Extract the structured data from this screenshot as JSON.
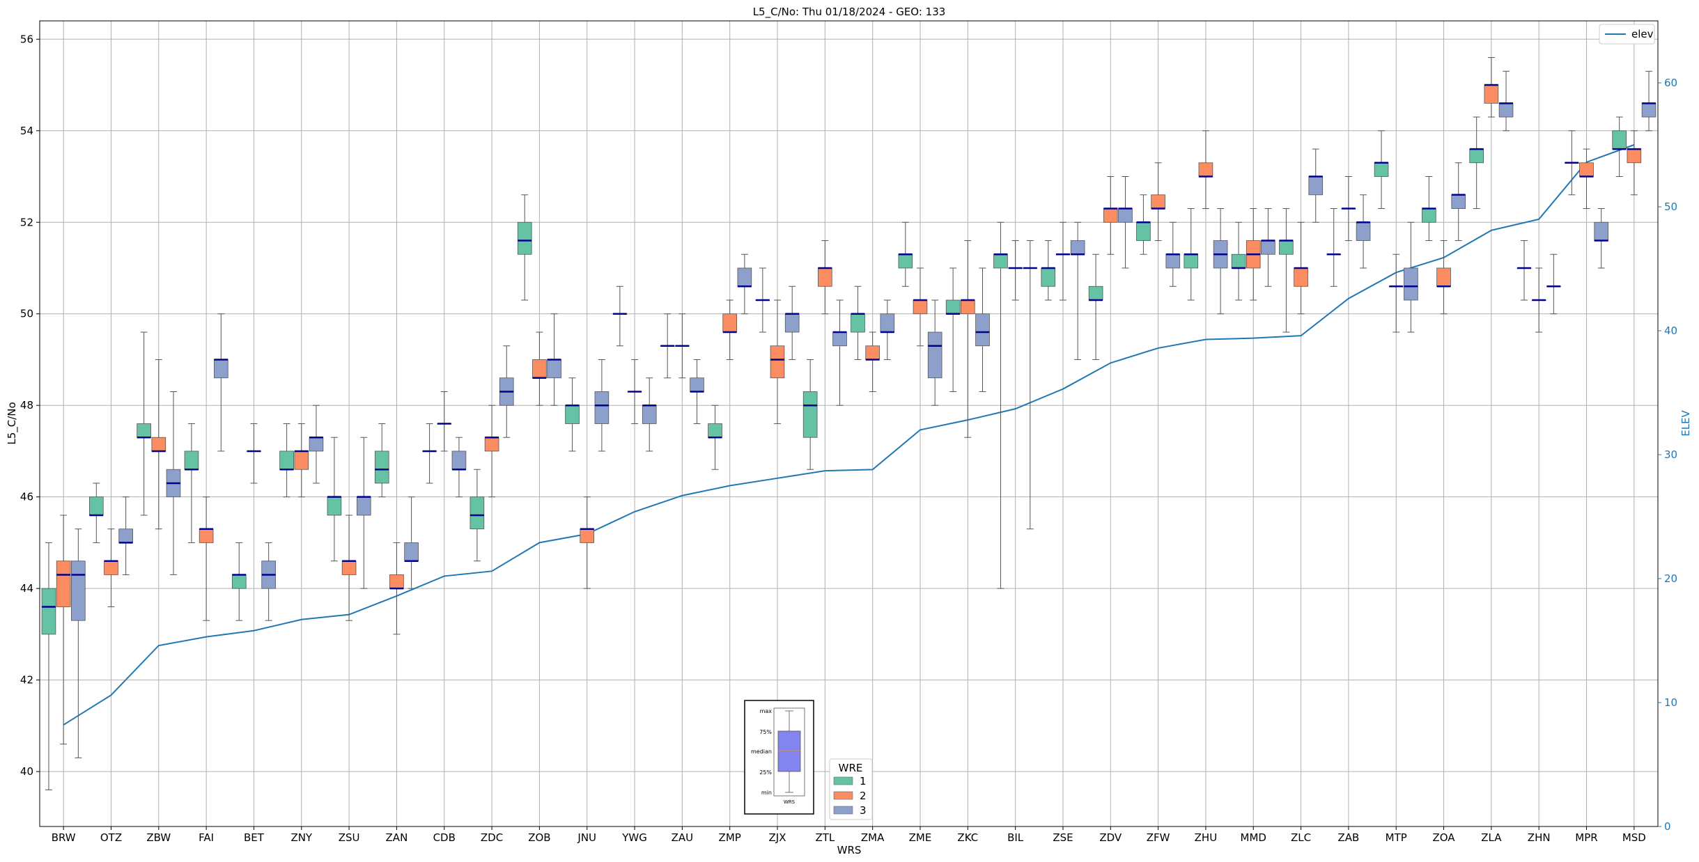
{
  "chart_data": {
    "type": "box",
    "title": "L5_C/No: Thu 01/18/2024 - GEO: 133",
    "xlabel": "WRS",
    "ylabel": "L5_C/No",
    "y2label": "ELEV",
    "ylim": [
      38.8,
      56.4
    ],
    "y2lim": [
      0,
      65
    ],
    "yticks": [
      40,
      42,
      44,
      46,
      48,
      50,
      52,
      54,
      56
    ],
    "y2ticks": [
      0,
      10,
      20,
      30,
      40,
      50,
      60
    ],
    "grid": true,
    "categories": [
      "BRW",
      "OTZ",
      "ZBW",
      "FAI",
      "BET",
      "ZNY",
      "ZSU",
      "ZAN",
      "CDB",
      "ZDC",
      "ZOB",
      "JNU",
      "YWG",
      "ZAU",
      "ZMP",
      "ZJX",
      "ZTL",
      "ZMA",
      "ZME",
      "ZKC",
      "BIL",
      "ZSE",
      "ZDV",
      "ZFW",
      "ZHU",
      "MMD",
      "ZLC",
      "ZAB",
      "MTP",
      "ZOA",
      "ZLA",
      "ZHN",
      "MPR",
      "MSD"
    ],
    "colors": {
      "wre1": "#66c2a5",
      "wre2": "#fc8d62",
      "wre3": "#8da0cb",
      "median": "#00008b",
      "elev": "#1f77b4",
      "whisker": "#555555",
      "grid": "#b0b0b0"
    },
    "box_legend": {
      "title": "WRE",
      "entries": [
        "1",
        "2",
        "3"
      ]
    },
    "line_legend": {
      "entries": [
        "elev"
      ]
    },
    "inset_key": {
      "labels": [
        "max",
        "75%",
        "median",
        "25%",
        "min"
      ],
      "xlabel": "WRS"
    },
    "elev": [
      8.2,
      10.6,
      14.6,
      15.3,
      15.8,
      16.7,
      17.1,
      18.6,
      20.2,
      20.6,
      22.9,
      23.6,
      25.4,
      26.7,
      27.5,
      28.1,
      28.7,
      28.8,
      32.0,
      32.8,
      33.7,
      35.3,
      37.4,
      38.6,
      39.3,
      39.4,
      39.6,
      42.6,
      44.7,
      45.9,
      48.1,
      49.0,
      53.6,
      55.0
    ],
    "boxes": [
      {
        "cat": "BRW",
        "wre": 1,
        "min": 39.6,
        "q1": 43.0,
        "med": 43.6,
        "q3": 44.0,
        "max": 45.0
      },
      {
        "cat": "BRW",
        "wre": 2,
        "min": 40.6,
        "q1": 43.6,
        "med": 44.3,
        "q3": 44.6,
        "max": 45.6
      },
      {
        "cat": "BRW",
        "wre": 3,
        "min": 40.3,
        "q1": 43.3,
        "med": 44.3,
        "q3": 44.6,
        "max": 45.3
      },
      {
        "cat": "OTZ",
        "wre": 1,
        "min": 45.0,
        "q1": 45.6,
        "med": 45.6,
        "q3": 46.0,
        "max": 46.3
      },
      {
        "cat": "OTZ",
        "wre": 2,
        "min": 43.6,
        "q1": 44.3,
        "med": 44.6,
        "q3": 44.6,
        "max": 45.3
      },
      {
        "cat": "OTZ",
        "wre": 3,
        "min": 44.3,
        "q1": 45.0,
        "med": 45.0,
        "q3": 45.3,
        "max": 46.0
      },
      {
        "cat": "ZBW",
        "wre": 1,
        "min": 45.6,
        "q1": 47.3,
        "med": 47.3,
        "q3": 47.6,
        "max": 49.6
      },
      {
        "cat": "ZBW",
        "wre": 2,
        "min": 45.3,
        "q1": 47.0,
        "med": 47.0,
        "q3": 47.3,
        "max": 49.0
      },
      {
        "cat": "ZBW",
        "wre": 3,
        "min": 44.3,
        "q1": 46.0,
        "med": 46.3,
        "q3": 46.6,
        "max": 48.3
      },
      {
        "cat": "FAI",
        "wre": 1,
        "min": 45.0,
        "q1": 46.6,
        "med": 46.6,
        "q3": 47.0,
        "max": 47.6
      },
      {
        "cat": "FAI",
        "wre": 2,
        "min": 43.3,
        "q1": 45.0,
        "med": 45.3,
        "q3": 45.3,
        "max": 46.0
      },
      {
        "cat": "FAI",
        "wre": 3,
        "min": 47.0,
        "q1": 48.6,
        "med": 49.0,
        "q3": 49.0,
        "max": 50.0
      },
      {
        "cat": "BET",
        "wre": 1,
        "min": 43.3,
        "q1": 44.0,
        "med": 44.3,
        "q3": 44.3,
        "max": 45.0
      },
      {
        "cat": "BET",
        "wre": 2,
        "min": 46.3,
        "q1": 47.0,
        "med": 47.0,
        "q3": 47.0,
        "max": 47.6
      },
      {
        "cat": "BET",
        "wre": 3,
        "min": 43.3,
        "q1": 44.0,
        "med": 44.3,
        "q3": 44.6,
        "max": 45.0
      },
      {
        "cat": "ZNY",
        "wre": 1,
        "min": 46.0,
        "q1": 46.6,
        "med": 46.6,
        "q3": 47.0,
        "max": 47.6
      },
      {
        "cat": "ZNY",
        "wre": 2,
        "min": 46.0,
        "q1": 46.6,
        "med": 47.0,
        "q3": 47.0,
        "max": 47.6
      },
      {
        "cat": "ZNY",
        "wre": 3,
        "min": 46.3,
        "q1": 47.0,
        "med": 47.3,
        "q3": 47.3,
        "max": 48.0
      },
      {
        "cat": "ZSU",
        "wre": 1,
        "min": 44.6,
        "q1": 45.6,
        "med": 46.0,
        "q3": 46.0,
        "max": 47.3
      },
      {
        "cat": "ZSU",
        "wre": 2,
        "min": 43.3,
        "q1": 44.3,
        "med": 44.6,
        "q3": 44.6,
        "max": 45.6
      },
      {
        "cat": "ZSU",
        "wre": 3,
        "min": 44.0,
        "q1": 45.6,
        "med": 46.0,
        "q3": 46.0,
        "max": 47.3
      },
      {
        "cat": "ZAN",
        "wre": 1,
        "min": 46.0,
        "q1": 46.3,
        "med": 46.6,
        "q3": 47.0,
        "max": 47.6
      },
      {
        "cat": "ZAN",
        "wre": 2,
        "min": 43.0,
        "q1": 44.0,
        "med": 44.0,
        "q3": 44.3,
        "max": 45.0
      },
      {
        "cat": "ZAN",
        "wre": 3,
        "min": 44.0,
        "q1": 44.6,
        "med": 44.6,
        "q3": 45.0,
        "max": 46.0
      },
      {
        "cat": "CDB",
        "wre": 1,
        "min": 46.3,
        "q1": 47.0,
        "med": 47.0,
        "q3": 47.0,
        "max": 47.6
      },
      {
        "cat": "CDB",
        "wre": 2,
        "min": 47.0,
        "q1": 47.6,
        "med": 47.6,
        "q3": 47.6,
        "max": 48.3
      },
      {
        "cat": "CDB",
        "wre": 3,
        "min": 46.0,
        "q1": 46.6,
        "med": 46.6,
        "q3": 47.0,
        "max": 47.3
      },
      {
        "cat": "ZDC",
        "wre": 1,
        "min": 44.6,
        "q1": 45.3,
        "med": 45.6,
        "q3": 46.0,
        "max": 46.6
      },
      {
        "cat": "ZDC",
        "wre": 2,
        "min": 46.0,
        "q1": 47.0,
        "med": 47.3,
        "q3": 47.3,
        "max": 48.0
      },
      {
        "cat": "ZDC",
        "wre": 3,
        "min": 47.3,
        "q1": 48.0,
        "med": 48.3,
        "q3": 48.6,
        "max": 49.3
      },
      {
        "cat": "ZOB",
        "wre": 1,
        "min": 50.3,
        "q1": 51.3,
        "med": 51.6,
        "q3": 52.0,
        "max": 52.6
      },
      {
        "cat": "ZOB",
        "wre": 2,
        "min": 48.0,
        "q1": 48.6,
        "med": 48.6,
        "q3": 49.0,
        "max": 49.6
      },
      {
        "cat": "ZOB",
        "wre": 3,
        "min": 48.0,
        "q1": 48.6,
        "med": 49.0,
        "q3": 49.0,
        "max": 50.0
      },
      {
        "cat": "JNU",
        "wre": 1,
        "min": 47.0,
        "q1": 47.6,
        "med": 48.0,
        "q3": 48.0,
        "max": 48.6
      },
      {
        "cat": "JNU",
        "wre": 2,
        "min": 44.0,
        "q1": 45.0,
        "med": 45.3,
        "q3": 45.3,
        "max": 46.0
      },
      {
        "cat": "JNU",
        "wre": 3,
        "min": 47.0,
        "q1": 47.6,
        "med": 48.0,
        "q3": 48.3,
        "max": 49.0
      },
      {
        "cat": "YWG",
        "wre": 1,
        "min": 49.3,
        "q1": 50.0,
        "med": 50.0,
        "q3": 50.0,
        "max": 50.6
      },
      {
        "cat": "YWG",
        "wre": 2,
        "min": 47.6,
        "q1": 48.3,
        "med": 48.3,
        "q3": 48.3,
        "max": 49.0
      },
      {
        "cat": "YWG",
        "wre": 3,
        "min": 47.0,
        "q1": 47.6,
        "med": 48.0,
        "q3": 48.0,
        "max": 48.6
      },
      {
        "cat": "ZAU",
        "wre": 1,
        "min": 48.6,
        "q1": 49.3,
        "med": 49.3,
        "q3": 49.3,
        "max": 50.0
      },
      {
        "cat": "ZAU",
        "wre": 2,
        "min": 48.6,
        "q1": 49.3,
        "med": 49.3,
        "q3": 49.3,
        "max": 50.0
      },
      {
        "cat": "ZAU",
        "wre": 3,
        "min": 47.6,
        "q1": 48.3,
        "med": 48.3,
        "q3": 48.6,
        "max": 49.0
      },
      {
        "cat": "ZMP",
        "wre": 1,
        "min": 46.6,
        "q1": 47.3,
        "med": 47.3,
        "q3": 47.6,
        "max": 48.0
      },
      {
        "cat": "ZMP",
        "wre": 2,
        "min": 49.0,
        "q1": 49.6,
        "med": 49.6,
        "q3": 50.0,
        "max": 50.3
      },
      {
        "cat": "ZMP",
        "wre": 3,
        "min": 50.0,
        "q1": 50.6,
        "med": 50.6,
        "q3": 51.0,
        "max": 51.3
      },
      {
        "cat": "ZJX",
        "wre": 1,
        "min": 49.6,
        "q1": 50.3,
        "med": 50.3,
        "q3": 50.3,
        "max": 51.0
      },
      {
        "cat": "ZJX",
        "wre": 2,
        "min": 47.6,
        "q1": 48.6,
        "med": 49.0,
        "q3": 49.3,
        "max": 50.3
      },
      {
        "cat": "ZJX",
        "wre": 3,
        "min": 49.0,
        "q1": 49.6,
        "med": 50.0,
        "q3": 50.0,
        "max": 50.6
      },
      {
        "cat": "ZTL",
        "wre": 1,
        "min": 46.6,
        "q1": 47.3,
        "med": 48.0,
        "q3": 48.3,
        "max": 49.0
      },
      {
        "cat": "ZTL",
        "wre": 2,
        "min": 50.0,
        "q1": 50.6,
        "med": 51.0,
        "q3": 51.0,
        "max": 51.6
      },
      {
        "cat": "ZTL",
        "wre": 3,
        "min": 48.0,
        "q1": 49.3,
        "med": 49.6,
        "q3": 49.6,
        "max": 50.3
      },
      {
        "cat": "ZMA",
        "wre": 1,
        "min": 49.0,
        "q1": 49.6,
        "med": 50.0,
        "q3": 50.0,
        "max": 50.6
      },
      {
        "cat": "ZMA",
        "wre": 2,
        "min": 48.3,
        "q1": 49.0,
        "med": 49.0,
        "q3": 49.3,
        "max": 49.6
      },
      {
        "cat": "ZMA",
        "wre": 3,
        "min": 49.0,
        "q1": 49.6,
        "med": 49.6,
        "q3": 50.0,
        "max": 50.3
      },
      {
        "cat": "ZME",
        "wre": 1,
        "min": 50.6,
        "q1": 51.0,
        "med": 51.3,
        "q3": 51.3,
        "max": 52.0
      },
      {
        "cat": "ZME",
        "wre": 2,
        "min": 49.3,
        "q1": 50.0,
        "med": 50.3,
        "q3": 50.3,
        "max": 51.0
      },
      {
        "cat": "ZME",
        "wre": 3,
        "min": 48.0,
        "q1": 48.6,
        "med": 49.3,
        "q3": 49.6,
        "max": 50.3
      },
      {
        "cat": "ZKC",
        "wre": 1,
        "min": 48.3,
        "q1": 50.0,
        "med": 50.0,
        "q3": 50.3,
        "max": 51.0
      },
      {
        "cat": "ZKC",
        "wre": 2,
        "min": 47.3,
        "q1": 50.0,
        "med": 50.3,
        "q3": 50.3,
        "max": 51.6
      },
      {
        "cat": "ZKC",
        "wre": 3,
        "min": 48.3,
        "q1": 49.3,
        "med": 49.6,
        "q3": 50.0,
        "max": 51.0
      },
      {
        "cat": "BIL",
        "wre": 1,
        "min": 44.0,
        "q1": 51.0,
        "med": 51.3,
        "q3": 51.3,
        "max": 52.0
      },
      {
        "cat": "BIL",
        "wre": 2,
        "min": 50.3,
        "q1": 51.0,
        "med": 51.0,
        "q3": 51.0,
        "max": 51.6
      },
      {
        "cat": "BIL",
        "wre": 3,
        "min": 45.3,
        "q1": 51.0,
        "med": 51.0,
        "q3": 51.0,
        "max": 51.6
      },
      {
        "cat": "ZSE",
        "wre": 1,
        "min": 50.3,
        "q1": 50.6,
        "med": 51.0,
        "q3": 51.0,
        "max": 51.6
      },
      {
        "cat": "ZSE",
        "wre": 2,
        "min": 50.3,
        "q1": 51.3,
        "med": 51.3,
        "q3": 51.3,
        "max": 52.0
      },
      {
        "cat": "ZSE",
        "wre": 3,
        "min": 49.0,
        "q1": 51.3,
        "med": 51.3,
        "q3": 51.6,
        "max": 52.0
      },
      {
        "cat": "ZDV",
        "wre": 1,
        "min": 49.0,
        "q1": 50.3,
        "med": 50.3,
        "q3": 50.6,
        "max": 51.3
      },
      {
        "cat": "ZDV",
        "wre": 2,
        "min": 51.3,
        "q1": 52.0,
        "med": 52.3,
        "q3": 52.3,
        "max": 53.0
      },
      {
        "cat": "ZDV",
        "wre": 3,
        "min": 51.0,
        "q1": 52.0,
        "med": 52.3,
        "q3": 52.3,
        "max": 53.0
      },
      {
        "cat": "ZFW",
        "wre": 1,
        "min": 51.3,
        "q1": 51.6,
        "med": 52.0,
        "q3": 52.0,
        "max": 52.6
      },
      {
        "cat": "ZFW",
        "wre": 2,
        "min": 51.6,
        "q1": 52.3,
        "med": 52.3,
        "q3": 52.6,
        "max": 53.3
      },
      {
        "cat": "ZFW",
        "wre": 3,
        "min": 50.6,
        "q1": 51.0,
        "med": 51.3,
        "q3": 51.3,
        "max": 52.0
      },
      {
        "cat": "ZHU",
        "wre": 1,
        "min": 50.3,
        "q1": 51.0,
        "med": 51.3,
        "q3": 51.3,
        "max": 52.3
      },
      {
        "cat": "ZHU",
        "wre": 2,
        "min": 52.3,
        "q1": 53.0,
        "med": 53.0,
        "q3": 53.3,
        "max": 54.0
      },
      {
        "cat": "ZHU",
        "wre": 3,
        "min": 50.0,
        "q1": 51.0,
        "med": 51.3,
        "q3": 51.6,
        "max": 52.3
      },
      {
        "cat": "MMD",
        "wre": 1,
        "min": 50.3,
        "q1": 51.0,
        "med": 51.0,
        "q3": 51.3,
        "max": 52.0
      },
      {
        "cat": "MMD",
        "wre": 2,
        "min": 50.3,
        "q1": 51.0,
        "med": 51.3,
        "q3": 51.6,
        "max": 52.3
      },
      {
        "cat": "MMD",
        "wre": 3,
        "min": 50.6,
        "q1": 51.3,
        "med": 51.6,
        "q3": 51.6,
        "max": 52.3
      },
      {
        "cat": "ZLC",
        "wre": 1,
        "min": 49.6,
        "q1": 51.3,
        "med": 51.6,
        "q3": 51.6,
        "max": 52.3
      },
      {
        "cat": "ZLC",
        "wre": 2,
        "min": 50.0,
        "q1": 50.6,
        "med": 51.0,
        "q3": 51.0,
        "max": 52.0
      },
      {
        "cat": "ZLC",
        "wre": 3,
        "min": 52.0,
        "q1": 52.6,
        "med": 53.0,
        "q3": 53.0,
        "max": 53.6
      },
      {
        "cat": "ZAB",
        "wre": 1,
        "min": 50.6,
        "q1": 51.3,
        "med": 51.3,
        "q3": 51.3,
        "max": 52.3
      },
      {
        "cat": "ZAB",
        "wre": 2,
        "min": 51.6,
        "q1": 52.3,
        "med": 52.3,
        "q3": 52.3,
        "max": 53.0
      },
      {
        "cat": "ZAB",
        "wre": 3,
        "min": 51.0,
        "q1": 51.6,
        "med": 52.0,
        "q3": 52.0,
        "max": 52.6
      },
      {
        "cat": "MTP",
        "wre": 1,
        "min": 52.3,
        "q1": 53.0,
        "med": 53.3,
        "q3": 53.3,
        "max": 54.0
      },
      {
        "cat": "MTP",
        "wre": 2,
        "min": 49.6,
        "q1": 50.6,
        "med": 50.6,
        "q3": 50.6,
        "max": 51.3
      },
      {
        "cat": "MTP",
        "wre": 3,
        "min": 49.6,
        "q1": 50.3,
        "med": 50.6,
        "q3": 51.0,
        "max": 52.0
      },
      {
        "cat": "ZOA",
        "wre": 1,
        "min": 51.6,
        "q1": 52.0,
        "med": 52.3,
        "q3": 52.3,
        "max": 53.0
      },
      {
        "cat": "ZOA",
        "wre": 2,
        "min": 50.0,
        "q1": 50.6,
        "med": 50.6,
        "q3": 51.0,
        "max": 51.6
      },
      {
        "cat": "ZOA",
        "wre": 3,
        "min": 51.6,
        "q1": 52.3,
        "med": 52.6,
        "q3": 52.6,
        "max": 53.3
      },
      {
        "cat": "ZLA",
        "wre": 1,
        "min": 52.3,
        "q1": 53.3,
        "med": 53.6,
        "q3": 53.6,
        "max": 54.3
      },
      {
        "cat": "ZLA",
        "wre": 2,
        "min": 54.3,
        "q1": 54.6,
        "med": 55.0,
        "q3": 55.0,
        "max": 55.6
      },
      {
        "cat": "ZLA",
        "wre": 3,
        "min": 54.0,
        "q1": 54.3,
        "med": 54.6,
        "q3": 54.6,
        "max": 55.3
      },
      {
        "cat": "ZHN",
        "wre": 1,
        "min": 50.3,
        "q1": 51.0,
        "med": 51.0,
        "q3": 51.0,
        "max": 51.6
      },
      {
        "cat": "ZHN",
        "wre": 2,
        "min": 49.6,
        "q1": 50.3,
        "med": 50.3,
        "q3": 50.3,
        "max": 51.0
      },
      {
        "cat": "ZHN",
        "wre": 3,
        "min": 50.0,
        "q1": 50.6,
        "med": 50.6,
        "q3": 50.6,
        "max": 51.3
      },
      {
        "cat": "MPR",
        "wre": 1,
        "min": 52.6,
        "q1": 53.3,
        "med": 53.3,
        "q3": 53.3,
        "max": 54.0
      },
      {
        "cat": "MPR",
        "wre": 2,
        "min": 52.3,
        "q1": 53.0,
        "med": 53.0,
        "q3": 53.3,
        "max": 53.6
      },
      {
        "cat": "MPR",
        "wre": 3,
        "min": 51.0,
        "q1": 51.6,
        "med": 51.6,
        "q3": 52.0,
        "max": 52.3
      },
      {
        "cat": "MSD",
        "wre": 1,
        "min": 53.0,
        "q1": 53.6,
        "med": 53.6,
        "q3": 54.0,
        "max": 54.3
      },
      {
        "cat": "MSD",
        "wre": 2,
        "min": 52.6,
        "q1": 53.3,
        "med": 53.6,
        "q3": 53.6,
        "max": 54.0
      },
      {
        "cat": "MSD",
        "wre": 3,
        "min": 54.0,
        "q1": 54.3,
        "med": 54.6,
        "q3": 54.6,
        "max": 55.3
      }
    ]
  }
}
